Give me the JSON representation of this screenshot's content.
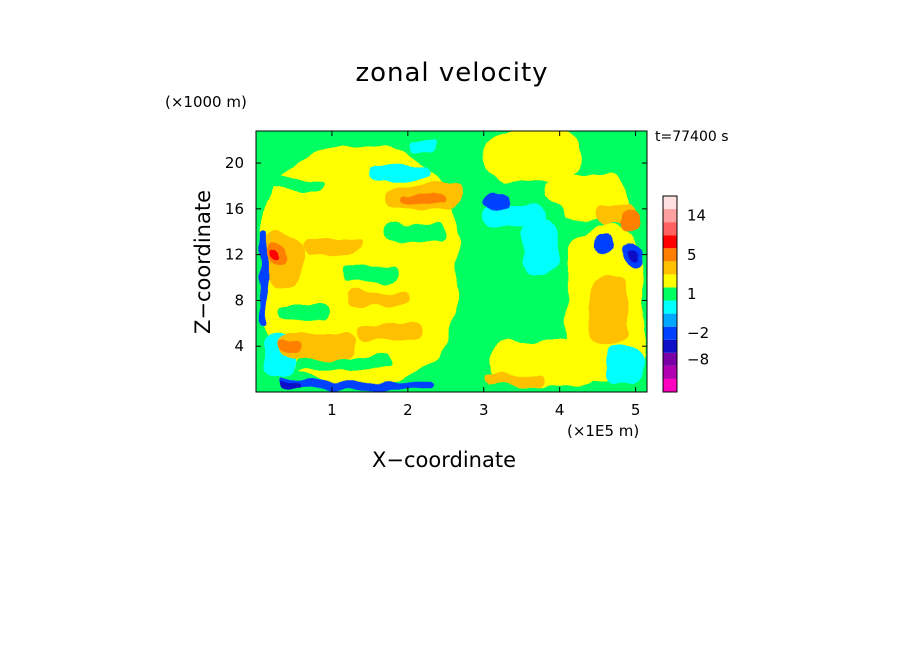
{
  "chart_data": {
    "type": "heatmap",
    "title": "zonal velocity",
    "xlabel": "X−coordinate",
    "ylabel": "Z−coordinate",
    "x_unit": "(×1E5 m)",
    "y_unit": "(×1000 m)",
    "time_label": "t=77400 s",
    "xlim": [
      0,
      5.15
    ],
    "ylim": [
      0,
      22.8
    ],
    "x_ticks": [
      1,
      2,
      3,
      4,
      5
    ],
    "x_tick_labels": [
      "1",
      "2",
      "3",
      "4",
      "5"
    ],
    "y_ticks": [
      4,
      8,
      12,
      16,
      20
    ],
    "y_tick_labels": [
      "4",
      "8",
      "12",
      "16",
      "20"
    ],
    "colorbar": {
      "levels": [
        -14,
        -11,
        -8,
        -5,
        -2,
        -1,
        0,
        1,
        2,
        3,
        5,
        8,
        11,
        14,
        17
      ],
      "colors": [
        "#ff00c0",
        "#b000b0",
        "#7a00a8",
        "#1010c8",
        "#0040ff",
        "#00a8ff",
        "#00ffff",
        "#00ff60",
        "#ffff00",
        "#ffc000",
        "#ff8000",
        "#ff0000",
        "#ff6060",
        "#ffa0a0",
        "#ffe0e0"
      ],
      "tick_values": [
        14,
        5,
        1,
        -2,
        -8
      ],
      "tick_labels": [
        "14",
        "5",
        "1",
        "−2",
        "−8"
      ]
    },
    "base_color": "#00ff60",
    "regions": [
      {
        "color": "#ffff00",
        "x": [
          0.05,
          2.65
        ],
        "z": [
          0.6,
          21.5
        ]
      },
      {
        "color": "#ffff00",
        "x": [
          3.0,
          4.3
        ],
        "z": [
          18.5,
          22.8
        ]
      },
      {
        "color": "#ffff00",
        "x": [
          3.1,
          4.5
        ],
        "z": [
          0.5,
          4.5
        ]
      },
      {
        "color": "#ffff00",
        "x": [
          4.1,
          5.1
        ],
        "z": [
          1.0,
          14.5
        ]
      },
      {
        "color": "#ffff00",
        "x": [
          3.8,
          4.9
        ],
        "z": [
          15.0,
          19.0
        ]
      },
      {
        "color": "#00ff60",
        "x": [
          2.65,
          4.1
        ],
        "z": [
          4.6,
          18.0
        ]
      },
      {
        "color": "#00ff60",
        "x": [
          0.3,
          1.0
        ],
        "z": [
          6.3,
          7.6
        ]
      },
      {
        "color": "#00ff60",
        "x": [
          1.1,
          1.9
        ],
        "z": [
          9.6,
          10.9
        ]
      },
      {
        "color": "#00ff60",
        "x": [
          0.2,
          0.9
        ],
        "z": [
          17.6,
          18.6
        ]
      },
      {
        "color": "#00ff60",
        "x": [
          1.7,
          2.5
        ],
        "z": [
          13.3,
          14.6
        ]
      },
      {
        "color": "#00ff60",
        "x": [
          0.5,
          1.8
        ],
        "z": [
          2.0,
          3.0
        ]
      },
      {
        "color": "#00ffff",
        "x": [
          3.5,
          4.0
        ],
        "z": [
          10.0,
          15.0
        ]
      },
      {
        "color": "#00ffff",
        "x": [
          1.5,
          2.3
        ],
        "z": [
          18.5,
          19.8
        ]
      },
      {
        "color": "#00ffff",
        "x": [
          2.0,
          2.4
        ],
        "z": [
          21.0,
          22.0
        ]
      },
      {
        "color": "#00ffff",
        "x": [
          3.0,
          3.8
        ],
        "z": [
          14.5,
          16.2
        ]
      },
      {
        "color": "#00ffff",
        "x": [
          4.6,
          5.1
        ],
        "z": [
          0.5,
          4.0
        ]
      },
      {
        "color": "#00ffff",
        "x": [
          0.1,
          0.5
        ],
        "z": [
          1.0,
          5.0
        ]
      },
      {
        "color": "#ffc000",
        "x": [
          0.1,
          0.6
        ],
        "z": [
          9.0,
          14.0
        ]
      },
      {
        "color": "#ffc000",
        "x": [
          0.3,
          1.3
        ],
        "z": [
          3.0,
          5.2
        ]
      },
      {
        "color": "#ffc000",
        "x": [
          1.3,
          2.2
        ],
        "z": [
          4.5,
          6.0
        ]
      },
      {
        "color": "#ffc000",
        "x": [
          0.6,
          1.4
        ],
        "z": [
          12.0,
          13.5
        ]
      },
      {
        "color": "#ffc000",
        "x": [
          1.7,
          2.7
        ],
        "z": [
          16.0,
          18.0
        ]
      },
      {
        "color": "#ffc000",
        "x": [
          1.2,
          2.0
        ],
        "z": [
          7.5,
          8.8
        ]
      },
      {
        "color": "#ffc000",
        "x": [
          4.4,
          4.9
        ],
        "z": [
          4.0,
          10.0
        ]
      },
      {
        "color": "#ffc000",
        "x": [
          4.5,
          5.0
        ],
        "z": [
          14.5,
          16.5
        ]
      },
      {
        "color": "#ffc000",
        "x": [
          3.0,
          3.8
        ],
        "z": [
          0.5,
          1.5
        ]
      },
      {
        "color": "#ff8000",
        "x": [
          0.15,
          0.4
        ],
        "z": [
          11.0,
          13.0
        ]
      },
      {
        "color": "#ff8000",
        "x": [
          0.3,
          0.6
        ],
        "z": [
          3.5,
          4.5
        ]
      },
      {
        "color": "#ff8000",
        "x": [
          4.8,
          5.05
        ],
        "z": [
          14.0,
          16.0
        ]
      },
      {
        "color": "#ff8000",
        "x": [
          1.9,
          2.5
        ],
        "z": [
          16.5,
          17.2
        ]
      },
      {
        "color": "#ff0000",
        "x": [
          0.18,
          0.3
        ],
        "z": [
          11.5,
          12.5
        ]
      },
      {
        "color": "#0040ff",
        "x": [
          0.3,
          2.3
        ],
        "z": [
          0.2,
          0.9
        ]
      },
      {
        "color": "#0040ff",
        "x": [
          4.45,
          4.75
        ],
        "z": [
          12.0,
          13.8
        ]
      },
      {
        "color": "#0040ff",
        "x": [
          4.85,
          5.1
        ],
        "z": [
          11.0,
          13.0
        ]
      },
      {
        "color": "#0040ff",
        "x": [
          3.0,
          3.35
        ],
        "z": [
          16.0,
          17.5
        ]
      },
      {
        "color": "#0040ff",
        "x": [
          0.05,
          0.15
        ],
        "z": [
          6.0,
          14.0
        ]
      },
      {
        "color": "#1010c8",
        "x": [
          0.3,
          0.6
        ],
        "z": [
          0.1,
          0.6
        ]
      },
      {
        "color": "#1010c8",
        "x": [
          4.9,
          5.05
        ],
        "z": [
          11.5,
          12.5
        ]
      }
    ]
  }
}
